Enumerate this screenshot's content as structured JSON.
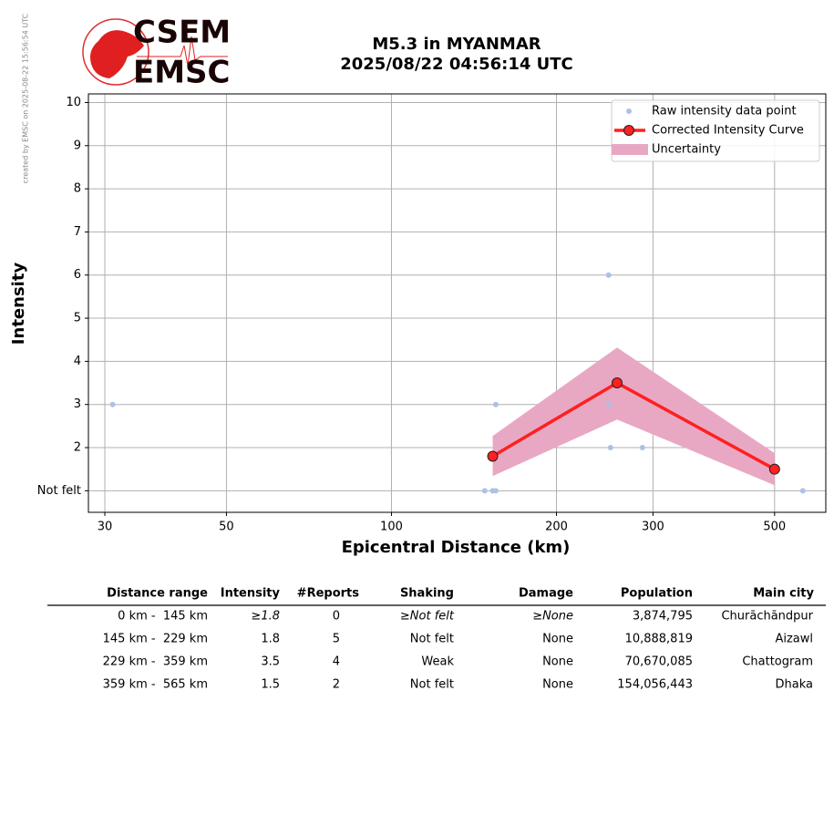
{
  "credit": "created by EMSC on 2025-08-22 15:56:54 UTC",
  "logo": {
    "top": "CSEM",
    "bottom": "EMSC"
  },
  "chart_data": {
    "type": "line",
    "title": "M5.3 in MYANMAR",
    "subtitle": "2025/08/22 04:56:14 UTC",
    "x_label": "Epicentral Distance (km)",
    "y_label": "Intensity",
    "xscale": "log",
    "grid": true,
    "legend": "upper right",
    "xlim": [
      28,
      620
    ],
    "xticks": [
      30,
      50,
      100,
      200,
      300,
      500
    ],
    "ylim": [
      0.5,
      10.2
    ],
    "yticks": [
      {
        "value": 1,
        "label": "Not felt"
      },
      2,
      3,
      4,
      5,
      6,
      7,
      8,
      9,
      10
    ],
    "uncertainty": {
      "name": "Uncertainty",
      "color": "#e8a8c4",
      "x": [
        153,
        258,
        500
      ],
      "lower": [
        1.34,
        2.65,
        1.13
      ],
      "upper": [
        2.27,
        4.32,
        1.87
      ]
    },
    "series": [
      {
        "name": "Raw intensity data point",
        "type": "scatter",
        "color": "#aec0e8",
        "x": [
          31,
          148,
          153,
          155,
          155,
          249,
          249,
          251,
          287,
          563
        ],
        "values": [
          3,
          1,
          1,
          1,
          3,
          6,
          3,
          2,
          2,
          1
        ]
      },
      {
        "name": "Corrected Intensity Curve",
        "type": "line",
        "color": "#ff2020",
        "x": [
          153,
          258,
          500
        ],
        "values": [
          1.8,
          3.5,
          1.5
        ]
      }
    ]
  },
  "table": {
    "header": [
      "Distance range",
      "Intensity",
      "#Reports",
      "Shaking",
      "Damage",
      "Population",
      "Main city"
    ],
    "rows": [
      [
        "0 km -  145 km",
        "≥1.8",
        "0",
        "≥Not felt",
        "≥None",
        "3,874,795",
        "Churāchāndpur"
      ],
      [
        "145 km -  229 km",
        "1.8",
        "5",
        "Not felt",
        "None",
        "10,888,819",
        "Aizawl"
      ],
      [
        "229 km -  359 km",
        "3.5",
        "4",
        "Weak",
        "None",
        "70,670,085",
        "Chattogram"
      ],
      [
        "359 km -  565 km",
        "1.5",
        "2",
        "Not felt",
        "None",
        "154,056,443",
        "Dhaka"
      ]
    ]
  }
}
